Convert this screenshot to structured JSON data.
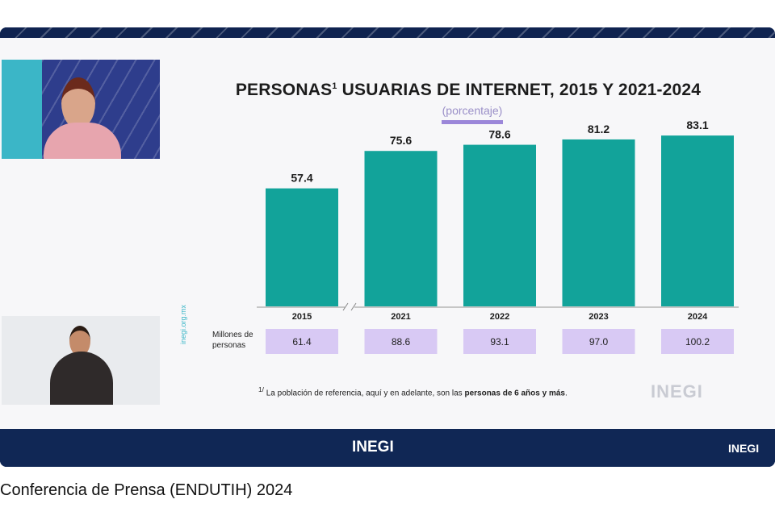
{
  "chart_data": {
    "type": "bar",
    "title": "PERSONAS",
    "title_sup": "1",
    "title_rest": " USUARIAS DE INTERNET, 2015 Y 2021-2024",
    "subtitle": "(porcentaje)",
    "categories": [
      "2015",
      "2021",
      "2022",
      "2023",
      "2024"
    ],
    "values": [
      57.4,
      75.6,
      78.6,
      81.2,
      83.1
    ],
    "value_labels": [
      "57.4",
      "75.6",
      "78.6",
      "81.2",
      "83.1"
    ],
    "ylim": [
      0,
      100
    ],
    "axis_break_after": "2015",
    "bar_color": "#12a39a",
    "table_row_label_1": "Millones de",
    "table_row_label_2": "personas",
    "millions": [
      "61.4",
      "88.6",
      "93.1",
      "97.0",
      "100.2"
    ],
    "table_cell_color": "#d8c9f4"
  },
  "footnote": {
    "mark": "1/",
    "text": " La población de referencia, aquí y en adelante, son las ",
    "bold": "personas de 6 años y más",
    "end": "."
  },
  "side_tag": "inegi.org.mx",
  "logos": {
    "slide": "INEGI",
    "footer": "INEGI",
    "corner": "INEGI"
  },
  "caption": "Conferencia de Prensa (ENDUTIH) 2024",
  "colors": {
    "frame": "#0f2350",
    "accent": "#9b86d9",
    "teal": "#3bb6c7"
  }
}
